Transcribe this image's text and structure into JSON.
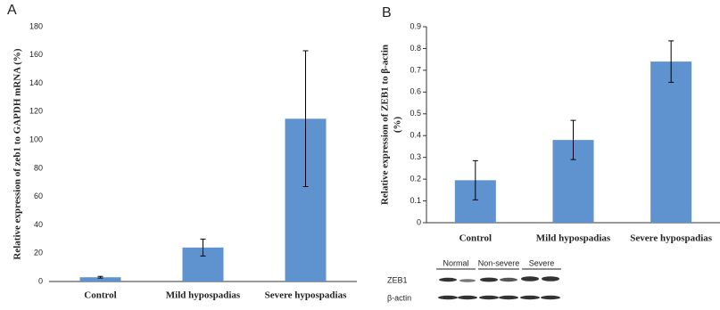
{
  "chart_data": [
    {
      "type": "bar",
      "panel": "A",
      "ylabel": [
        "Relative expression of zeb1 to GAPDH mRNA (%)"
      ],
      "categories": [
        "Control",
        "Mild hypospadias",
        "Severe hypospadias"
      ],
      "values": [
        3,
        24,
        115
      ],
      "errors": [
        0.6,
        6,
        48
      ],
      "color": "#5f93cf",
      "ylim": [
        0,
        180
      ],
      "yticks": [
        0,
        20,
        40,
        60,
        80,
        100,
        120,
        140,
        160,
        180
      ]
    },
    {
      "type": "bar",
      "panel": "B",
      "ylabel": [
        "Relative expression of ZEB1 to β-actin",
        "(%)"
      ],
      "categories": [
        "Control",
        "Mild hypospadias",
        "Severe hypospadias"
      ],
      "values": [
        0.195,
        0.38,
        0.74
      ],
      "errors": [
        0.09,
        0.09,
        0.095
      ],
      "color": "#5f93cf",
      "ylim": [
        0,
        0.9
      ],
      "yticks": [
        0,
        0.1,
        0.2,
        0.3,
        0.4,
        0.5,
        0.6,
        0.7,
        0.8,
        0.9
      ],
      "blot": {
        "groups": [
          "Normal",
          "Non-severe",
          "Severe"
        ],
        "rows": [
          "ZEB1",
          "β-actin"
        ]
      }
    }
  ]
}
